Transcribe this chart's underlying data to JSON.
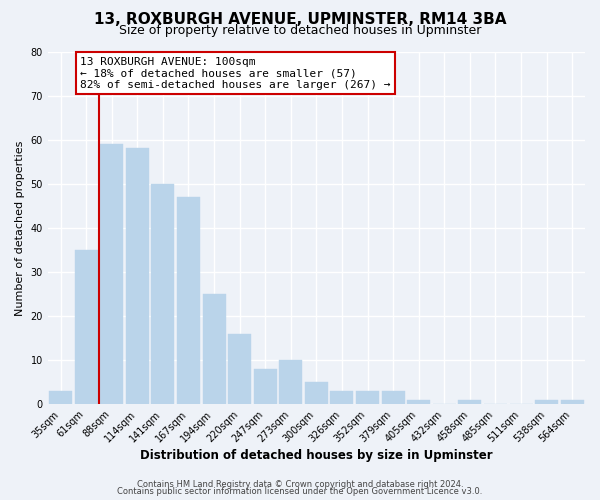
{
  "title": "13, ROXBURGH AVENUE, UPMINSTER, RM14 3BA",
  "subtitle": "Size of property relative to detached houses in Upminster",
  "xlabel": "Distribution of detached houses by size in Upminster",
  "ylabel": "Number of detached properties",
  "bar_labels": [
    "35sqm",
    "61sqm",
    "88sqm",
    "114sqm",
    "141sqm",
    "167sqm",
    "194sqm",
    "220sqm",
    "247sqm",
    "273sqm",
    "300sqm",
    "326sqm",
    "352sqm",
    "379sqm",
    "405sqm",
    "432sqm",
    "458sqm",
    "485sqm",
    "511sqm",
    "538sqm",
    "564sqm"
  ],
  "bar_values": [
    3,
    35,
    59,
    58,
    50,
    47,
    25,
    16,
    8,
    10,
    5,
    3,
    3,
    3,
    1,
    0,
    1,
    0,
    0,
    1,
    1
  ],
  "bar_color": "#bad4ea",
  "bar_edgecolor": "#bad4ea",
  "vline_x_index": 2,
  "vline_color": "#cc0000",
  "annotation_title": "13 ROXBURGH AVENUE: 100sqm",
  "annotation_line1": "← 18% of detached houses are smaller (57)",
  "annotation_line2": "82% of semi-detached houses are larger (267) →",
  "annotation_box_color": "#ffffff",
  "annotation_box_edgecolor": "#cc0000",
  "ylim": [
    0,
    80
  ],
  "yticks": [
    0,
    10,
    20,
    30,
    40,
    50,
    60,
    70,
    80
  ],
  "footer1": "Contains HM Land Registry data © Crown copyright and database right 2024.",
  "footer2": "Contains public sector information licensed under the Open Government Licence v3.0.",
  "bg_color": "#eef2f8",
  "grid_color": "#ffffff",
  "title_fontsize": 11,
  "subtitle_fontsize": 9,
  "axis_label_fontsize": 8.5,
  "ylabel_fontsize": 8,
  "tick_fontsize": 7,
  "footer_fontsize": 6,
  "annotation_fontsize": 8
}
